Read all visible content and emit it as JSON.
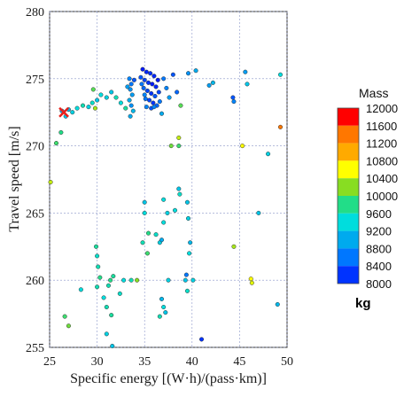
{
  "chart_data": {
    "type": "scatter",
    "xlabel": "Specific energy [(W·h)/(pass·km)]",
    "ylabel": "Travel speed [m/s]",
    "xlim": [
      25,
      50
    ],
    "ylim": [
      255,
      280
    ],
    "xticks": [
      "25",
      "30",
      "35",
      "40",
      "45",
      "50"
    ],
    "yticks": [
      "255",
      "260",
      "265",
      "270",
      "275",
      "280"
    ],
    "grid": true,
    "marker_highlight": {
      "x": 26.5,
      "y": 272.5,
      "symbol": "X",
      "color": "#e8201a"
    },
    "colorbar": {
      "title": "Mass",
      "unit": "kg",
      "labels": [
        "12000",
        "11600",
        "11200",
        "10800",
        "10400",
        "10000",
        "9600",
        "9200",
        "8800",
        "8400",
        "8000"
      ],
      "colors": [
        "#ff0000",
        "#ff7700",
        "#ffaa00",
        "#ffff00",
        "#88dd22",
        "#22dd88",
        "#00dddd",
        "#00aaee",
        "#0077ff",
        "#0033ff",
        "#0000ee"
      ]
    },
    "series": [
      {
        "values": [
          {
            "x": 34.8,
            "y": 275.7,
            "m": 8200
          },
          {
            "x": 35.2,
            "y": 275.5,
            "m": 8300
          },
          {
            "x": 35.6,
            "y": 275.4,
            "m": 8400
          },
          {
            "x": 36.0,
            "y": 275.2,
            "m": 8300
          },
          {
            "x": 34.6,
            "y": 275.1,
            "m": 8600
          },
          {
            "x": 35.0,
            "y": 274.9,
            "m": 8500
          },
          {
            "x": 35.4,
            "y": 274.7,
            "m": 8400
          },
          {
            "x": 35.8,
            "y": 274.6,
            "m": 8200
          },
          {
            "x": 36.2,
            "y": 274.4,
            "m": 8300
          },
          {
            "x": 34.9,
            "y": 274.3,
            "m": 8700
          },
          {
            "x": 35.3,
            "y": 274.1,
            "m": 8500
          },
          {
            "x": 35.7,
            "y": 273.9,
            "m": 8400
          },
          {
            "x": 36.1,
            "y": 273.7,
            "m": 8600
          },
          {
            "x": 35.1,
            "y": 273.5,
            "m": 8800
          },
          {
            "x": 35.5,
            "y": 273.4,
            "m": 8500
          },
          {
            "x": 35.9,
            "y": 273.2,
            "m": 8400
          },
          {
            "x": 36.3,
            "y": 273.0,
            "m": 8700
          },
          {
            "x": 35.2,
            "y": 272.9,
            "m": 8900
          },
          {
            "x": 35.7,
            "y": 272.8,
            "m": 8600
          },
          {
            "x": 36.4,
            "y": 274.9,
            "m": 8200
          },
          {
            "x": 36.5,
            "y": 274.0,
            "m": 8500
          },
          {
            "x": 36.6,
            "y": 273.3,
            "m": 8800
          },
          {
            "x": 34.7,
            "y": 274.6,
            "m": 8800
          },
          {
            "x": 35.0,
            "y": 273.8,
            "m": 8900
          },
          {
            "x": 36.0,
            "y": 272.9,
            "m": 8900
          },
          {
            "x": 33.4,
            "y": 275.0,
            "m": 8900
          },
          {
            "x": 33.6,
            "y": 274.6,
            "m": 8800
          },
          {
            "x": 33.5,
            "y": 274.2,
            "m": 9000
          },
          {
            "x": 33.7,
            "y": 273.8,
            "m": 9100
          },
          {
            "x": 33.4,
            "y": 273.4,
            "m": 9200
          },
          {
            "x": 33.6,
            "y": 273.0,
            "m": 9000
          },
          {
            "x": 33.8,
            "y": 272.6,
            "m": 9300
          },
          {
            "x": 33.5,
            "y": 272.2,
            "m": 9200
          },
          {
            "x": 33.9,
            "y": 274.9,
            "m": 8600
          },
          {
            "x": 33.2,
            "y": 274.4,
            "m": 9100
          },
          {
            "x": 37.0,
            "y": 275.0,
            "m": 8800
          },
          {
            "x": 37.3,
            "y": 274.3,
            "m": 8900
          },
          {
            "x": 37.6,
            "y": 273.6,
            "m": 9100
          },
          {
            "x": 36.8,
            "y": 272.4,
            "m": 9200
          },
          {
            "x": 38.0,
            "y": 275.3,
            "m": 8600
          },
          {
            "x": 38.4,
            "y": 274.0,
            "m": 8700
          },
          {
            "x": 39.6,
            "y": 275.4,
            "m": 9000
          },
          {
            "x": 40.4,
            "y": 275.6,
            "m": 9200
          },
          {
            "x": 41.8,
            "y": 274.5,
            "m": 9100
          },
          {
            "x": 42.2,
            "y": 274.7,
            "m": 9300
          },
          {
            "x": 44.3,
            "y": 273.6,
            "m": 8600
          },
          {
            "x": 44.4,
            "y": 273.3,
            "m": 8900
          },
          {
            "x": 45.6,
            "y": 275.5,
            "m": 9100
          },
          {
            "x": 45.8,
            "y": 274.6,
            "m": 9400
          },
          {
            "x": 49.3,
            "y": 275.3,
            "m": 9600
          },
          {
            "x": 49.3,
            "y": 271.4,
            "m": 11600
          },
          {
            "x": 38.8,
            "y": 273.0,
            "m": 10200
          },
          {
            "x": 38.6,
            "y": 270.6,
            "m": 10600
          },
          {
            "x": 37.8,
            "y": 270.0,
            "m": 10300
          },
          {
            "x": 38.6,
            "y": 270.0,
            "m": 10100
          },
          {
            "x": 45.3,
            "y": 270.0,
            "m": 10800
          },
          {
            "x": 48.0,
            "y": 269.4,
            "m": 9500
          },
          {
            "x": 47.0,
            "y": 265.0,
            "m": 9400
          },
          {
            "x": 44.4,
            "y": 262.5,
            "m": 10500
          },
          {
            "x": 46.2,
            "y": 260.1,
            "m": 10800
          },
          {
            "x": 46.3,
            "y": 259.8,
            "m": 10700
          },
          {
            "x": 49.0,
            "y": 258.2,
            "m": 9300
          },
          {
            "x": 41.0,
            "y": 255.6,
            "m": 8400
          },
          {
            "x": 36.2,
            "y": 263.4,
            "m": 9700
          },
          {
            "x": 36.6,
            "y": 262.8,
            "m": 9500
          },
          {
            "x": 35.0,
            "y": 265.8,
            "m": 9400
          },
          {
            "x": 37.0,
            "y": 266.0,
            "m": 9600
          },
          {
            "x": 37.4,
            "y": 265.0,
            "m": 9500
          },
          {
            "x": 37.0,
            "y": 264.3,
            "m": 9600
          },
          {
            "x": 36.8,
            "y": 263.0,
            "m": 9200
          },
          {
            "x": 37.5,
            "y": 260.0,
            "m": 9500
          },
          {
            "x": 36.8,
            "y": 258.6,
            "m": 9300
          },
          {
            "x": 37.0,
            "y": 258.0,
            "m": 9600
          },
          {
            "x": 37.2,
            "y": 257.6,
            "m": 9400
          },
          {
            "x": 36.6,
            "y": 257.3,
            "m": 9800
          },
          {
            "x": 38.6,
            "y": 266.8,
            "m": 9400
          },
          {
            "x": 38.7,
            "y": 266.4,
            "m": 9700
          },
          {
            "x": 38.2,
            "y": 265.2,
            "m": 9600
          },
          {
            "x": 39.5,
            "y": 265.8,
            "m": 9400
          },
          {
            "x": 39.6,
            "y": 264.6,
            "m": 9500
          },
          {
            "x": 39.8,
            "y": 262.8,
            "m": 9300
          },
          {
            "x": 39.7,
            "y": 262.0,
            "m": 9600
          },
          {
            "x": 39.4,
            "y": 260.4,
            "m": 8800
          },
          {
            "x": 39.3,
            "y": 260.0,
            "m": 9400
          },
          {
            "x": 39.5,
            "y": 259.2,
            "m": 9700
          },
          {
            "x": 40.1,
            "y": 260.0,
            "m": 9500
          },
          {
            "x": 35.0,
            "y": 265.0,
            "m": 9600
          },
          {
            "x": 35.4,
            "y": 263.5,
            "m": 10000
          },
          {
            "x": 34.8,
            "y": 262.8,
            "m": 9800
          },
          {
            "x": 35.3,
            "y": 262.0,
            "m": 10100
          },
          {
            "x": 34.2,
            "y": 260.0,
            "m": 10400
          },
          {
            "x": 33.6,
            "y": 260.0,
            "m": 9800
          },
          {
            "x": 32.8,
            "y": 260.0,
            "m": 9600
          },
          {
            "x": 32.4,
            "y": 259.0,
            "m": 9700
          },
          {
            "x": 31.7,
            "y": 260.3,
            "m": 9900
          },
          {
            "x": 31.4,
            "y": 260.0,
            "m": 10000
          },
          {
            "x": 31.2,
            "y": 259.6,
            "m": 9800
          },
          {
            "x": 30.7,
            "y": 258.7,
            "m": 9600
          },
          {
            "x": 31.0,
            "y": 258.0,
            "m": 9800
          },
          {
            "x": 31.5,
            "y": 257.4,
            "m": 9900
          },
          {
            "x": 31.0,
            "y": 256.0,
            "m": 9500
          },
          {
            "x": 31.6,
            "y": 255.1,
            "m": 9400
          },
          {
            "x": 28.3,
            "y": 259.3,
            "m": 9600
          },
          {
            "x": 26.6,
            "y": 257.3,
            "m": 10100
          },
          {
            "x": 27.0,
            "y": 256.6,
            "m": 10300
          },
          {
            "x": 30.0,
            "y": 261.8,
            "m": 9700
          },
          {
            "x": 30.1,
            "y": 261.0,
            "m": 9800
          },
          {
            "x": 29.9,
            "y": 262.5,
            "m": 9900
          },
          {
            "x": 30.3,
            "y": 260.2,
            "m": 10000
          },
          {
            "x": 30.0,
            "y": 259.5,
            "m": 9800
          },
          {
            "x": 25.1,
            "y": 267.3,
            "m": 10600
          },
          {
            "x": 25.7,
            "y": 270.2,
            "m": 10100
          },
          {
            "x": 26.2,
            "y": 271.0,
            "m": 10000
          },
          {
            "x": 26.7,
            "y": 272.2,
            "m": 9400
          },
          {
            "x": 27.0,
            "y": 272.7,
            "m": 9300
          },
          {
            "x": 27.4,
            "y": 272.5,
            "m": 9500
          },
          {
            "x": 26.3,
            "y": 272.6,
            "m": 9200
          },
          {
            "x": 27.9,
            "y": 272.8,
            "m": 9600
          },
          {
            "x": 28.5,
            "y": 273.0,
            "m": 9800
          },
          {
            "x": 29.1,
            "y": 272.9,
            "m": 9500
          },
          {
            "x": 29.5,
            "y": 273.2,
            "m": 9700
          },
          {
            "x": 30.0,
            "y": 273.4,
            "m": 9400
          },
          {
            "x": 30.4,
            "y": 273.8,
            "m": 9600
          },
          {
            "x": 31.0,
            "y": 273.6,
            "m": 9500
          },
          {
            "x": 31.5,
            "y": 274.0,
            "m": 9400
          },
          {
            "x": 32.0,
            "y": 273.6,
            "m": 9800
          },
          {
            "x": 32.5,
            "y": 273.2,
            "m": 9600
          },
          {
            "x": 33.0,
            "y": 272.8,
            "m": 9900
          },
          {
            "x": 29.6,
            "y": 274.2,
            "m": 10200
          },
          {
            "x": 29.8,
            "y": 272.8,
            "m": 10500
          }
        ]
      }
    ]
  }
}
